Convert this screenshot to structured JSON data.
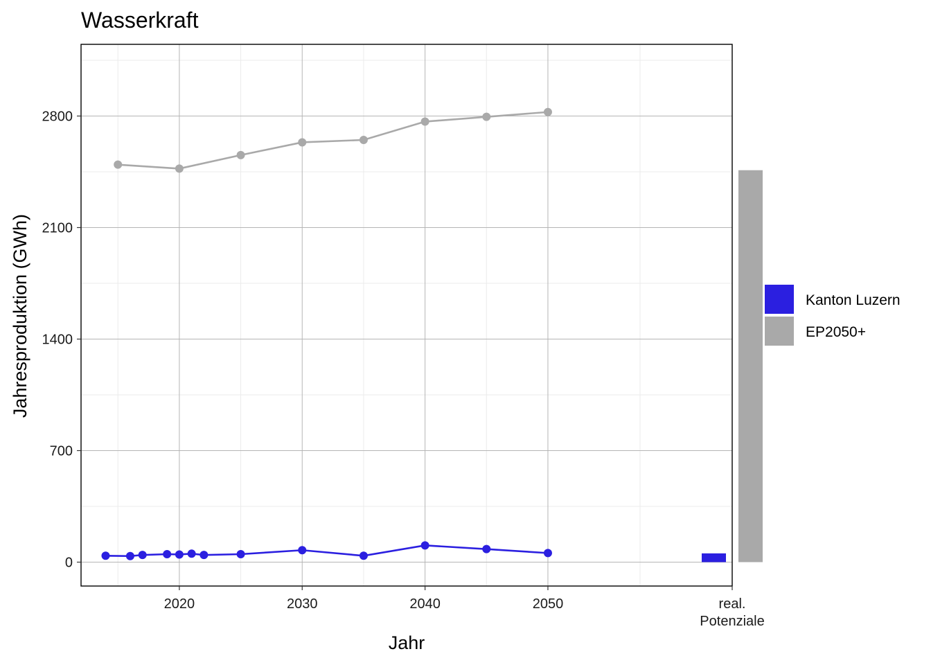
{
  "chart_data": {
    "type": "line",
    "title": "Wasserkraft",
    "xlabel": "Jahr",
    "ylabel": "Jahresproduktion (GWh)",
    "xlim": [
      2012,
      2065
    ],
    "ylim": [
      -150,
      3250
    ],
    "y_ticks": [
      0,
      700,
      1400,
      2100,
      2800
    ],
    "x_ticks": [
      2020,
      2030,
      2040,
      2050
    ],
    "x_tick_labels": [
      "2020",
      "2030",
      "2040",
      "2050"
    ],
    "potential_label": [
      "real.",
      "Potenziale"
    ],
    "grid": true,
    "legend_position": "right",
    "series": [
      {
        "name": "Kanton Luzern",
        "color": "#2b1fe0",
        "x": [
          2014,
          2016,
          2017,
          2019,
          2020,
          2021,
          2022,
          2025,
          2030,
          2035,
          2040,
          2045,
          2050
        ],
        "y": [
          40,
          38,
          45,
          50,
          48,
          53,
          45,
          50,
          75,
          40,
          105,
          82,
          57
        ]
      },
      {
        "name": "EP2050+",
        "color": "#a9a9a9",
        "x": [
          2015,
          2020,
          2025,
          2030,
          2035,
          2040,
          2045,
          2050
        ],
        "y": [
          2495,
          2470,
          2555,
          2635,
          2650,
          2765,
          2795,
          2825
        ]
      }
    ],
    "bars": [
      {
        "series": "Kanton Luzern",
        "value": 55,
        "color": "#2b1fe0"
      },
      {
        "series": "EP2050+",
        "value": 2460,
        "color": "#a9a9a9"
      }
    ]
  }
}
